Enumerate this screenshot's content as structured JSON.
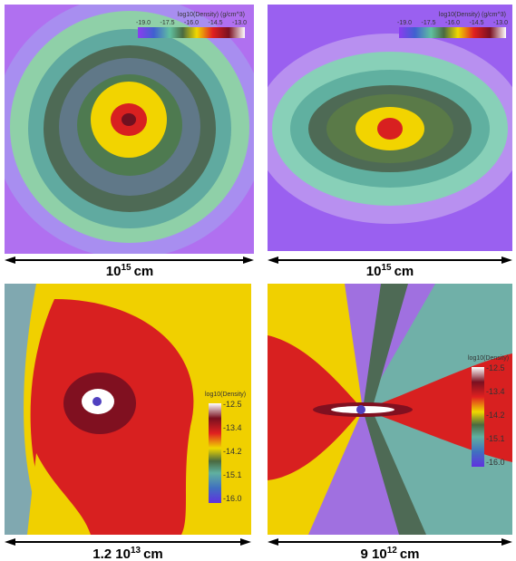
{
  "panels": [
    {
      "colorbar": {
        "title": "log10(Density) (g/cm^3)",
        "ticks": [
          "-19.0",
          "-17.5",
          "-16.0",
          "-14.5",
          "-13.0"
        ]
      },
      "scale": {
        "prefix": "10",
        "exponent": "15",
        "unit": "cm"
      }
    },
    {
      "colorbar": {
        "title": "log10(Density) (g/cm^3)",
        "ticks": [
          "-19.0",
          "-17.5",
          "-16.0",
          "-14.5",
          "-13.0"
        ]
      },
      "scale": {
        "prefix": "10",
        "exponent": "15",
        "unit": "cm"
      }
    },
    {
      "colorbar": {
        "title": "log10(Density)",
        "ticks": [
          "-12.5",
          "-13.4",
          "-14.2",
          "-15.1",
          "-16.0"
        ]
      },
      "scale": {
        "prefix": "1.2 10",
        "exponent": "13",
        "unit": "cm"
      }
    },
    {
      "colorbar": {
        "title": "log10(Density)",
        "ticks": [
          "-12.5",
          "-13.4",
          "-14.2",
          "-15.1",
          "-16.0"
        ]
      },
      "scale": {
        "prefix": "9 10",
        "exponent": "12",
        "unit": "cm"
      }
    }
  ]
}
